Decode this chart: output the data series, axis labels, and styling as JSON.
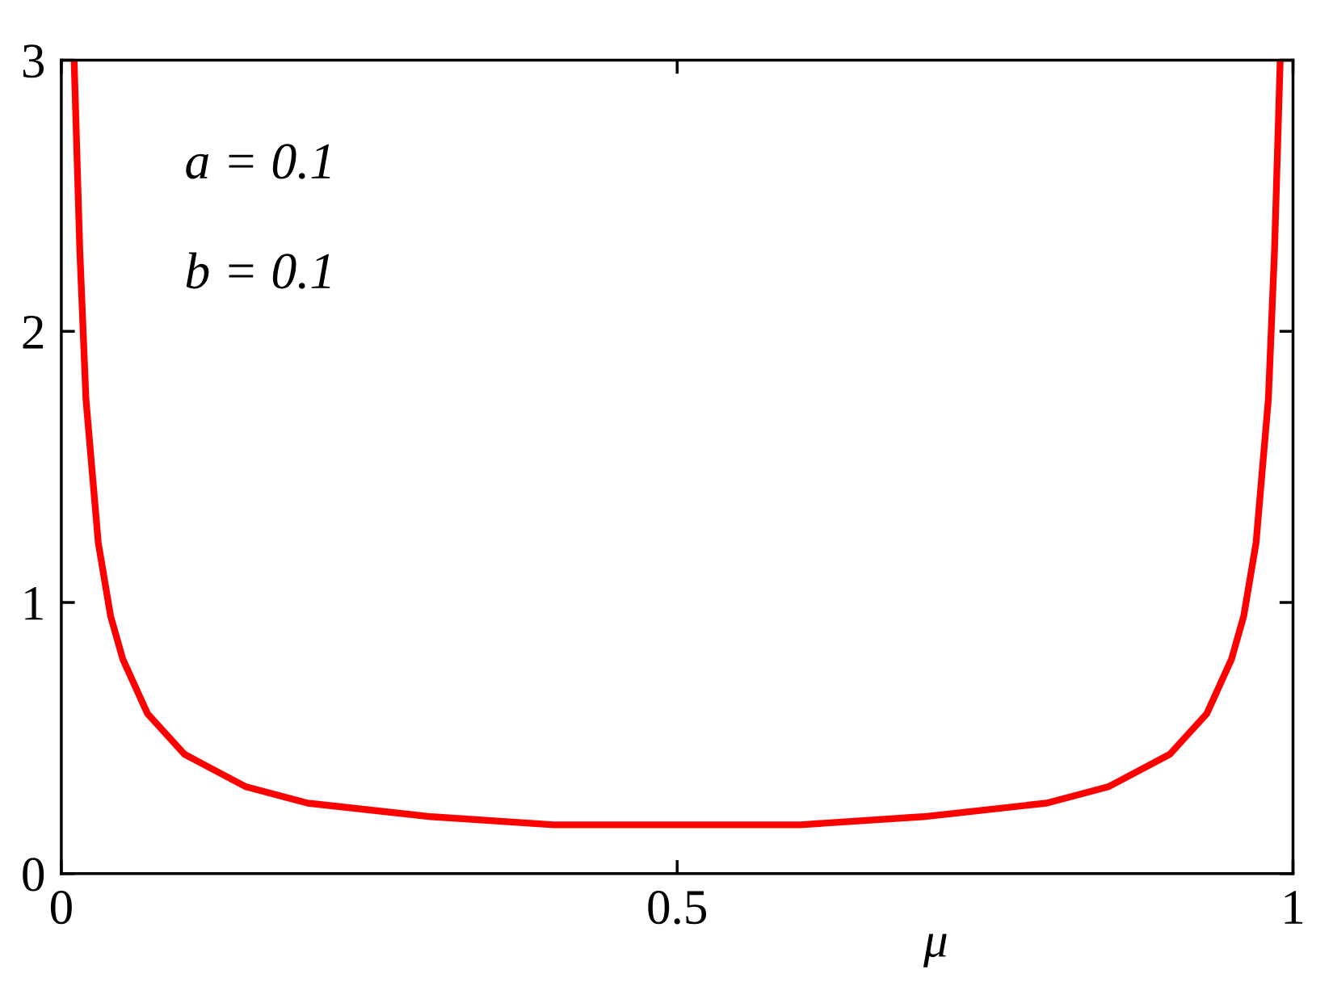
{
  "chart_data": {
    "type": "line",
    "xlabel": "μ",
    "annotations": [
      "a = 0.1",
      "b = 0.1"
    ],
    "series": [
      {
        "color": "#ff0000",
        "x": [
          0.0104,
          0.015,
          0.02,
          0.03,
          0.04,
          0.05,
          0.07,
          0.1,
          0.15,
          0.2,
          0.3,
          0.4,
          0.5,
          0.6,
          0.7,
          0.8,
          0.85,
          0.9,
          0.93,
          0.95,
          0.96,
          0.97,
          0.98,
          0.985,
          0.9896
        ],
        "values": [
          3.0,
          2.3,
          1.75,
          1.22,
          0.95,
          0.79,
          0.59,
          0.44,
          0.32,
          0.26,
          0.21,
          0.18,
          0.18,
          0.18,
          0.21,
          0.26,
          0.32,
          0.44,
          0.59,
          0.79,
          0.95,
          1.22,
          1.75,
          2.3,
          3.0
        ]
      }
    ],
    "xlim": [
      0,
      1
    ],
    "ylim": [
      0,
      3
    ],
    "xticks": [
      0,
      0.5,
      1
    ],
    "yticks": [
      0,
      1,
      2,
      3
    ],
    "grid": false,
    "legend": false,
    "marker": "none",
    "line_style": "solid"
  }
}
